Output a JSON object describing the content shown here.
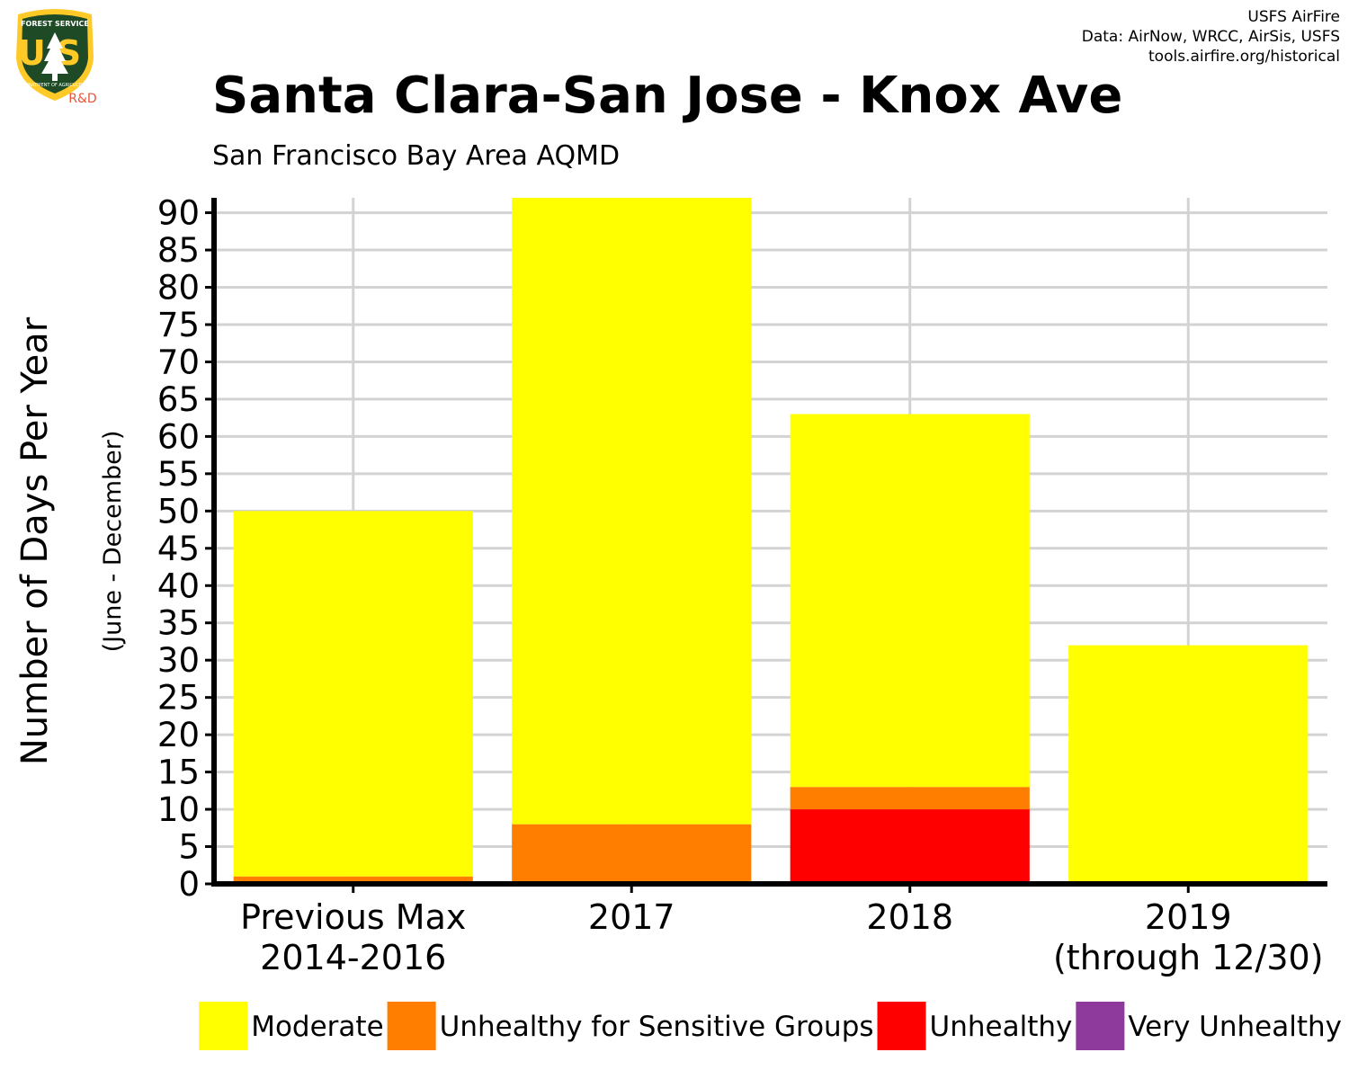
{
  "logo": {
    "top_text": "FOREST SERVICE",
    "initials": "US",
    "bottom_text": "DEPARTMENT OF AGRICULTURE",
    "badge": "R&D"
  },
  "credits": {
    "line1": "USFS AirFire",
    "line2": "Data: AirNow, WRCC, AirSis, USFS",
    "line3": "tools.airfire.org/historical"
  },
  "chart_data": {
    "type": "bar",
    "stacked": true,
    "title": "Santa Clara-San Jose - Knox Ave",
    "subtitle": "San Francisco Bay Area AQMD",
    "ylabel": "Number of Days Per Year",
    "ylabel_sub": "(June - December)",
    "xlabel": "",
    "ylim": [
      0,
      92
    ],
    "yticks": [
      0,
      5,
      10,
      15,
      20,
      25,
      30,
      35,
      40,
      45,
      50,
      55,
      60,
      65,
      70,
      75,
      80,
      85,
      90
    ],
    "grid": true,
    "categories": [
      [
        "Previous Max",
        "2014-2016"
      ],
      [
        "2017"
      ],
      [
        "2018"
      ],
      [
        "2019",
        "(through 12/30)"
      ]
    ],
    "series": [
      {
        "name": "Very Unhealthy",
        "color": "#8e3a9c",
        "values": [
          0,
          0,
          0,
          0
        ]
      },
      {
        "name": "Unhealthy",
        "color": "#ff0000",
        "values": [
          0,
          0,
          10,
          0
        ]
      },
      {
        "name": "Unhealthy for Sensitive Groups",
        "color": "#ff7e00",
        "values": [
          1,
          8,
          3,
          0
        ]
      },
      {
        "name": "Moderate",
        "color": "#ffff00",
        "values": [
          49,
          84,
          50,
          32
        ]
      }
    ],
    "legend": {
      "position": "bottom",
      "order": [
        "Moderate",
        "Unhealthy for Sensitive Groups",
        "Unhealthy",
        "Very Unhealthy"
      ]
    }
  }
}
